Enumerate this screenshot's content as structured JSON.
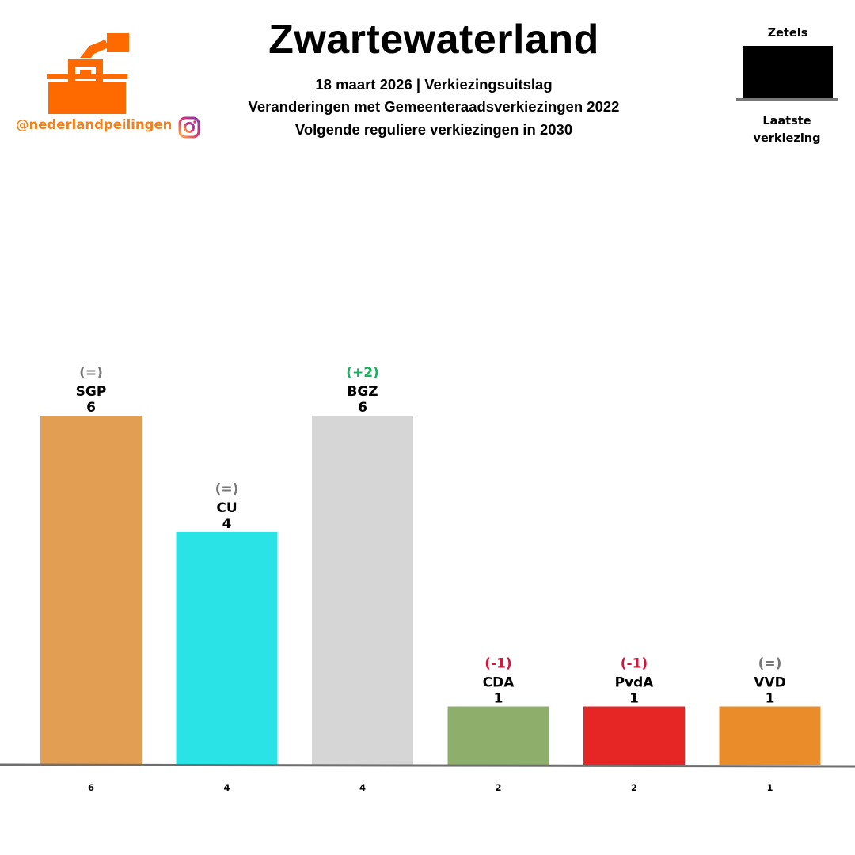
{
  "header": {
    "title": "Zwartewaterland",
    "subtitle_lines": [
      "18 maart 2026 | Verkiezingsuitslag",
      "Veranderingen met Gemeenteraadsverkiezingen 2022",
      "Volgende reguliere verkiezingen in 2030"
    ]
  },
  "branding": {
    "handle": "@nederlandpeilingen",
    "logo_icon": "ballot-box-logo-icon",
    "social_icon": "instagram-icon",
    "brand_color": "#ff6a00"
  },
  "legend": {
    "top_label": "Zetels",
    "bottom_label_line1": "Laatste",
    "bottom_label_line2": "verkiezing"
  },
  "chart_data": {
    "type": "bar",
    "title": "Zwartewaterland",
    "categories": [
      "SGP",
      "CU",
      "BGZ",
      "CDA",
      "PvdA",
      "VVD"
    ],
    "values": [
      6,
      4,
      6,
      1,
      1,
      1
    ],
    "previous_values": [
      6,
      4,
      4,
      2,
      2,
      1
    ],
    "changes": [
      "(=)",
      "(=)",
      "(+2)",
      "(-1)",
      "(-1)",
      "(=)"
    ],
    "colors": [
      "#e29e52",
      "#2ae3e6",
      "#d6d6d6",
      "#8daf6b",
      "#e62624",
      "#e98c29"
    ],
    "change_colors": {
      "up": "#16b05e",
      "down": "#d9143a",
      "same": "#777777"
    },
    "ylim": [
      0,
      6
    ],
    "grid": false
  }
}
